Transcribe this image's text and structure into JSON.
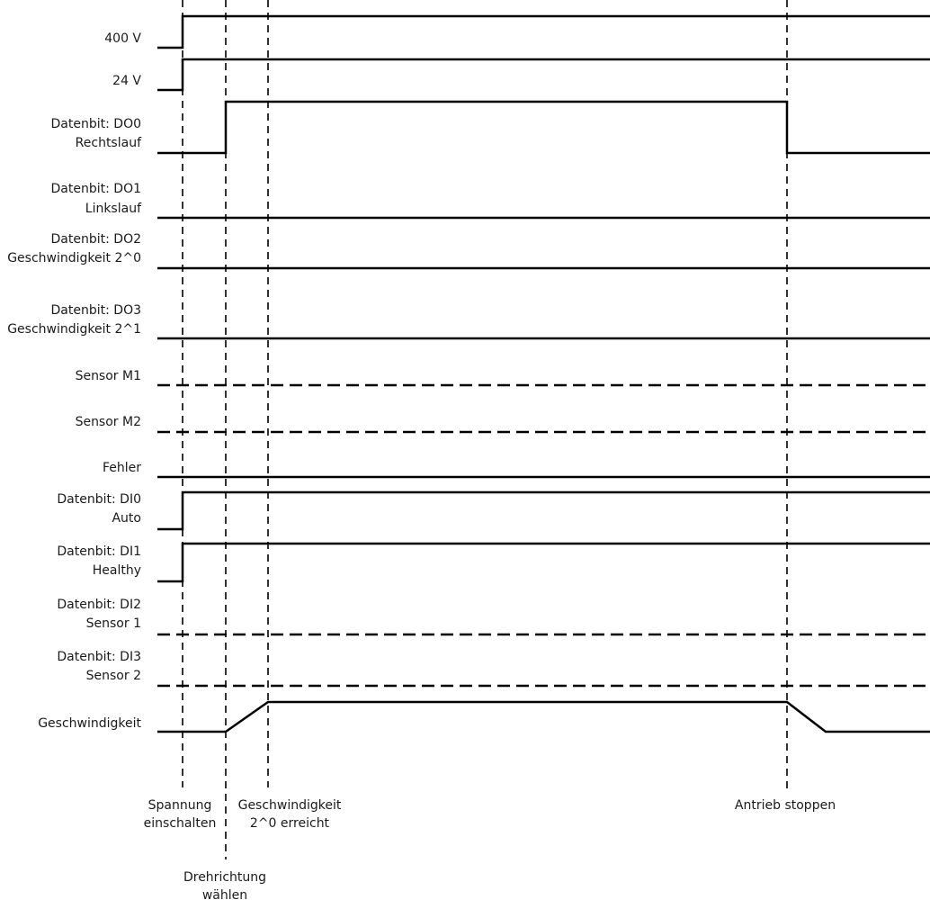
{
  "events": [
    {
      "id": "e1",
      "label_lines": [
        "Spannung",
        "einschalten"
      ]
    },
    {
      "id": "e2",
      "label_lines": [
        "Drehrichtung",
        "wählen"
      ]
    },
    {
      "id": "e3",
      "label_lines": [
        "Geschwindigkeit",
        "2^0 erreicht"
      ]
    },
    {
      "id": "e4",
      "label_lines": [
        "Antrieb stoppen"
      ]
    }
  ],
  "signals": [
    {
      "label_lines": [
        "400 V"
      ],
      "style": "solid",
      "levels": [
        0,
        1,
        1,
        1,
        1
      ]
    },
    {
      "label_lines": [
        "24 V"
      ],
      "style": "solid",
      "levels": [
        0,
        1,
        1,
        1,
        1
      ]
    },
    {
      "label_lines": [
        "Datenbit: DO0",
        "Rechtslauf"
      ],
      "style": "solid",
      "levels": [
        0,
        0,
        1,
        1,
        0
      ]
    },
    {
      "label_lines": [
        "Datenbit: DO1",
        "Linkslauf"
      ],
      "style": "solid",
      "levels": [
        0,
        0,
        0,
        0,
        0
      ]
    },
    {
      "label_lines": [
        "Datenbit: DO2",
        "Geschwindigkeit 2^0"
      ],
      "style": "solid",
      "levels": [
        0,
        0,
        0,
        0,
        0
      ]
    },
    {
      "label_lines": [
        "Datenbit: DO3",
        "Geschwindigkeit 2^1"
      ],
      "style": "solid",
      "levels": [
        0,
        0,
        0,
        0,
        0
      ]
    },
    {
      "label_lines": [
        "Sensor M1"
      ],
      "style": "dashed",
      "levels": [
        0,
        0,
        0,
        0,
        0
      ]
    },
    {
      "label_lines": [
        "Sensor M2"
      ],
      "style": "dashed",
      "levels": [
        0,
        0,
        0,
        0,
        0
      ]
    },
    {
      "label_lines": [
        "Fehler"
      ],
      "style": "solid",
      "levels": [
        0,
        0,
        0,
        0,
        0
      ]
    },
    {
      "label_lines": [
        "Datenbit: DI0",
        "Auto"
      ],
      "style": "solid",
      "levels": [
        0,
        1,
        1,
        1,
        1
      ]
    },
    {
      "label_lines": [
        "Datenbit: DI1",
        "Healthy"
      ],
      "style": "solid",
      "levels": [
        0,
        1,
        1,
        1,
        1
      ]
    },
    {
      "label_lines": [
        "Datenbit: DI2",
        "Sensor 1"
      ],
      "style": "dashed",
      "levels": [
        0,
        0,
        0,
        0,
        0
      ]
    },
    {
      "label_lines": [
        "Datenbit: DI3",
        "Sensor 2"
      ],
      "style": "dashed",
      "levels": [
        0,
        0,
        0,
        0,
        0
      ]
    },
    {
      "label_lines": [
        "Geschwindigkeit"
      ],
      "style": "solid",
      "levels": [
        0,
        0,
        "ramp-up",
        1,
        "ramp-down"
      ]
    }
  ],
  "colors": {
    "line": "#000000",
    "text": "#1a1a1a"
  }
}
